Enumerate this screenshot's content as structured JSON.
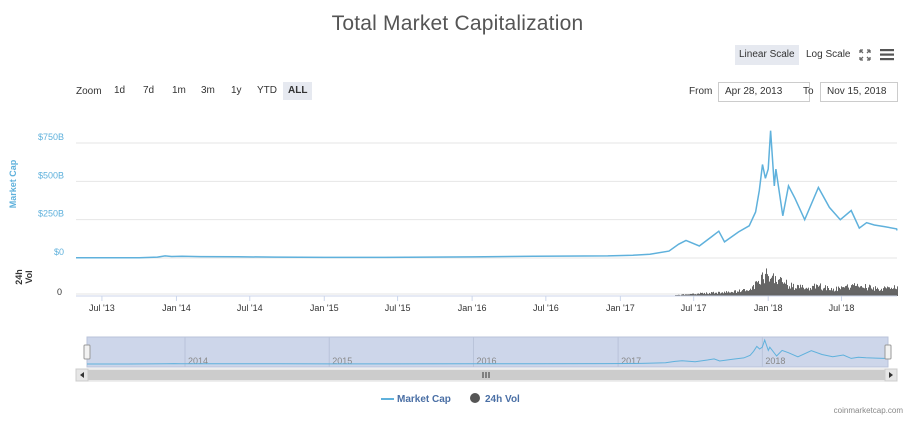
{
  "title": "Total Market Capitalization",
  "scale_buttons": {
    "linear": "Linear Scale",
    "log": "Log Scale",
    "active": "linear"
  },
  "icons": {
    "fullscreen": "fullscreen-icon",
    "menu": "hamburger-menu-icon"
  },
  "zoom": {
    "label": "Zoom",
    "buttons": [
      "1d",
      "7d",
      "1m",
      "3m",
      "1y",
      "YTD",
      "ALL"
    ],
    "active": "ALL"
  },
  "range": {
    "from_label": "From",
    "from_value": "Apr 28, 2013",
    "to_label": "To",
    "to_value": "Nov 15, 2018"
  },
  "navigator_years": [
    "2014",
    "2015",
    "2016",
    "2017",
    "2018"
  ],
  "credit": "coinmarketcap.com",
  "colors": {
    "market_cap": "#5fb1dc",
    "volume": "#555555",
    "navigator_bg": "#cdd6ea"
  },
  "chart_data": {
    "type": "line",
    "title": "Total Market Capitalization",
    "xlabel": "",
    "ylabel": "Market Cap",
    "y_ticks": [
      "$750B",
      "$500B",
      "$250B",
      "$0"
    ],
    "y_tick_values": [
      750,
      500,
      250,
      0
    ],
    "ylim": [
      0,
      825
    ],
    "volume_axis_label": "24h Vol",
    "volume_ticks": [
      "0"
    ],
    "x_ticks": [
      "Jul '13",
      "Jan '14",
      "Jul '14",
      "Jan '15",
      "Jul '15",
      "Jan '16",
      "Jul '16",
      "Jan '17",
      "Jul '17",
      "Jan '18",
      "Jul '18"
    ],
    "x_tick_dates": [
      "2013-07-01",
      "2014-01-01",
      "2014-07-01",
      "2015-01-01",
      "2015-07-01",
      "2016-01-01",
      "2016-07-01",
      "2017-01-01",
      "2017-07-01",
      "2018-01-01",
      "2018-07-01"
    ],
    "xlim": [
      "2013-04-28",
      "2018-11-15"
    ],
    "legend": [
      "Market Cap",
      "24h Vol"
    ],
    "legend_position": "bottom",
    "series": [
      {
        "name": "Market Cap",
        "unit": "USD billions",
        "points": [
          [
            "2013-04-28",
            1.6
          ],
          [
            "2013-07-01",
            1.3
          ],
          [
            "2013-10-01",
            2
          ],
          [
            "2013-11-15",
            6
          ],
          [
            "2013-12-04",
            14
          ],
          [
            "2013-12-20",
            10
          ],
          [
            "2014-01-15",
            11
          ],
          [
            "2014-03-01",
            9
          ],
          [
            "2014-06-01",
            8
          ],
          [
            "2014-09-01",
            6
          ],
          [
            "2015-01-01",
            4
          ],
          [
            "2015-06-01",
            4
          ],
          [
            "2016-01-01",
            7
          ],
          [
            "2016-06-01",
            12
          ],
          [
            "2016-12-01",
            14
          ],
          [
            "2017-02-01",
            18
          ],
          [
            "2017-03-15",
            25
          ],
          [
            "2017-05-01",
            45
          ],
          [
            "2017-05-25",
            90
          ],
          [
            "2017-06-12",
            115
          ],
          [
            "2017-07-15",
            78
          ],
          [
            "2017-08-15",
            140
          ],
          [
            "2017-09-01",
            175
          ],
          [
            "2017-09-15",
            105
          ],
          [
            "2017-10-20",
            170
          ],
          [
            "2017-11-15",
            210
          ],
          [
            "2017-12-01",
            300
          ],
          [
            "2017-12-10",
            440
          ],
          [
            "2017-12-18",
            610
          ],
          [
            "2017-12-25",
            520
          ],
          [
            "2018-01-01",
            580
          ],
          [
            "2018-01-07",
            830
          ],
          [
            "2018-01-16",
            470
          ],
          [
            "2018-01-20",
            580
          ],
          [
            "2018-02-06",
            275
          ],
          [
            "2018-02-20",
            470
          ],
          [
            "2018-03-08",
            390
          ],
          [
            "2018-04-01",
            250
          ],
          [
            "2018-05-05",
            460
          ],
          [
            "2018-06-01",
            330
          ],
          [
            "2018-06-28",
            250
          ],
          [
            "2018-07-25",
            310
          ],
          [
            "2018-08-14",
            195
          ],
          [
            "2018-09-01",
            230
          ],
          [
            "2018-09-20",
            215
          ],
          [
            "2018-10-15",
            205
          ],
          [
            "2018-11-14",
            190
          ],
          [
            "2018-11-15",
            180
          ]
        ]
      },
      {
        "name": "24h Vol",
        "unit": "USD billions",
        "points": [
          [
            "2017-05-15",
            1
          ],
          [
            "2017-07-01",
            3
          ],
          [
            "2017-08-15",
            4
          ],
          [
            "2017-10-01",
            5
          ],
          [
            "2017-11-15",
            8
          ],
          [
            "2017-12-15",
            22
          ],
          [
            "2018-01-05",
            30
          ],
          [
            "2018-02-01",
            18
          ],
          [
            "2018-03-01",
            12
          ],
          [
            "2018-04-01",
            10
          ],
          [
            "2018-05-01",
            13
          ],
          [
            "2018-06-01",
            9
          ],
          [
            "2018-07-01",
            10
          ],
          [
            "2018-08-01",
            13
          ],
          [
            "2018-09-01",
            11
          ],
          [
            "2018-10-01",
            9
          ],
          [
            "2018-11-15",
            11
          ]
        ]
      }
    ]
  }
}
